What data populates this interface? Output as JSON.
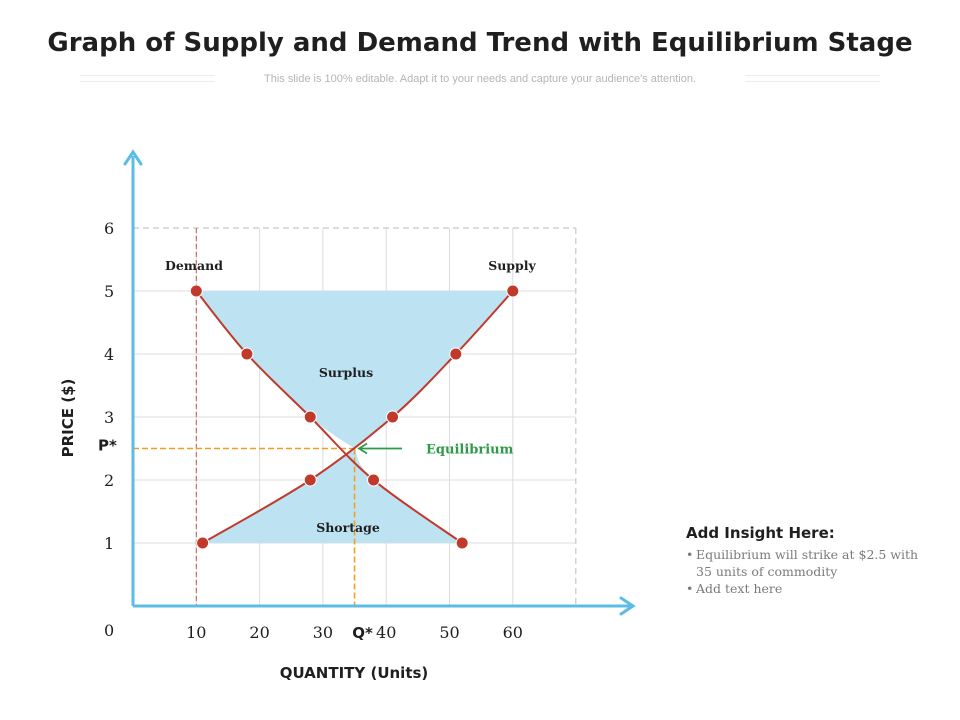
{
  "header": {
    "title": "Graph of Supply and Demand Trend with Equilibrium Stage",
    "subtitle": "This slide is 100% editable. Adapt it to your needs and capture your audience's attention."
  },
  "chart_data": {
    "type": "line",
    "xlabel": "QUANTITY (Units)",
    "ylabel": "PRICE ($)",
    "x_ticks": [
      "10",
      "20",
      "30",
      "40",
      "50",
      "60"
    ],
    "y_ticks": [
      "1",
      "2",
      "3",
      "4",
      "5",
      "6"
    ],
    "origin_label": "0",
    "xlim": [
      0,
      60
    ],
    "ylim": [
      0,
      6
    ],
    "grid": true,
    "series": [
      {
        "name": "Demand",
        "color": "#c0392b",
        "points": [
          [
            10,
            5
          ],
          [
            18,
            4
          ],
          [
            28,
            3
          ],
          [
            38,
            2
          ],
          [
            52,
            1
          ]
        ]
      },
      {
        "name": "Supply",
        "color": "#c0392b",
        "points": [
          [
            11,
            1
          ],
          [
            28,
            2
          ],
          [
            41,
            3
          ],
          [
            51,
            4
          ],
          [
            60,
            5
          ]
        ]
      }
    ],
    "equilibrium": {
      "x": 35,
      "y": 2.5,
      "x_label": "Q*",
      "y_label": "P*",
      "annotation": "Equilibrium"
    },
    "regions": [
      {
        "label": "Surplus",
        "color": "#bde3f3"
      },
      {
        "label": "Shortage",
        "color": "#bde3f3"
      }
    ],
    "colors": {
      "axis": "#5bbde6",
      "curve": "#c0392b",
      "guide": "#f0a020",
      "arrow": "#2e9a4a",
      "grid": "#dcdcdc"
    }
  },
  "insight": {
    "heading": "Add Insight Here:",
    "bullets": [
      "Equilibrium will strike at $2.5 with 35 units of commodity",
      "Add text here"
    ]
  }
}
